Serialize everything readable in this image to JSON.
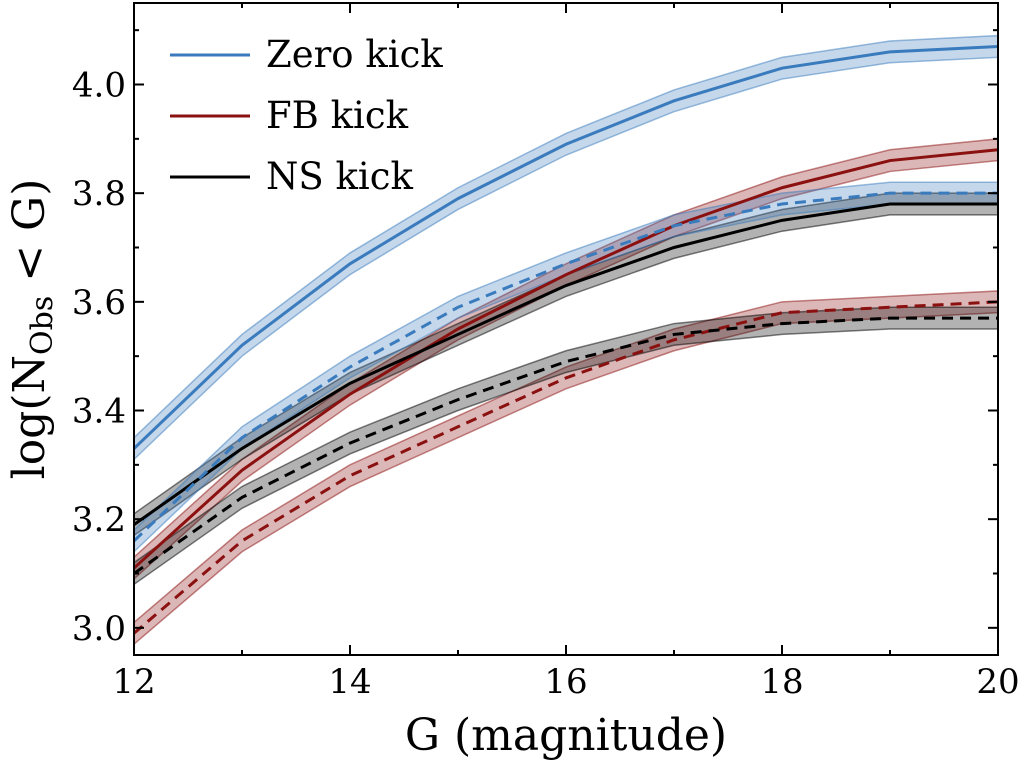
{
  "chart_data": {
    "type": "line",
    "title": "",
    "xlabel": "G (magnitude)",
    "ylabel": {
      "main": "log(N",
      "sub": "Obs",
      "tail": " < G)"
    },
    "xlim": [
      12,
      20
    ],
    "ylim": [
      2.95,
      4.15
    ],
    "xticks": [
      12,
      14,
      16,
      18,
      20
    ],
    "yticks": [
      3.0,
      3.2,
      3.4,
      3.6,
      3.8,
      4.0
    ],
    "ytick_labels": [
      "3.0",
      "3.2",
      "3.4",
      "3.6",
      "3.8",
      "4.0"
    ],
    "legend_position": "top-left",
    "x": [
      12,
      13,
      14,
      15,
      16,
      17,
      18,
      19,
      20
    ],
    "series": [
      {
        "name": "Zero kick",
        "color": "#3a7bbd",
        "style": "solid",
        "legend": true,
        "values": [
          3.33,
          3.52,
          3.67,
          3.79,
          3.89,
          3.97,
          4.03,
          4.06,
          4.07
        ],
        "band": 0.02
      },
      {
        "name": "FB kick",
        "color": "#8b1010",
        "style": "solid",
        "legend": true,
        "values": [
          3.11,
          3.29,
          3.43,
          3.55,
          3.65,
          3.74,
          3.81,
          3.86,
          3.88
        ],
        "band": 0.02
      },
      {
        "name": "NS kick",
        "color": "#000000",
        "style": "solid",
        "legend": true,
        "values": [
          3.19,
          3.33,
          3.45,
          3.54,
          3.63,
          3.7,
          3.75,
          3.78,
          3.78
        ],
        "band": 0.02
      },
      {
        "name": "Zero kick (dashed)",
        "color": "#3a7bbd",
        "style": "dashed",
        "legend": false,
        "values": [
          3.16,
          3.35,
          3.48,
          3.59,
          3.67,
          3.74,
          3.78,
          3.8,
          3.8
        ],
        "band": 0.02
      },
      {
        "name": "FB kick (dashed)",
        "color": "#8b1010",
        "style": "dashed",
        "legend": false,
        "values": [
          2.99,
          3.16,
          3.28,
          3.37,
          3.46,
          3.53,
          3.58,
          3.59,
          3.6
        ],
        "band": 0.02
      },
      {
        "name": "NS kick (dashed)",
        "color": "#000000",
        "style": "dashed",
        "legend": false,
        "values": [
          3.1,
          3.24,
          3.34,
          3.42,
          3.49,
          3.54,
          3.56,
          3.57,
          3.57
        ],
        "band": 0.02
      }
    ]
  }
}
